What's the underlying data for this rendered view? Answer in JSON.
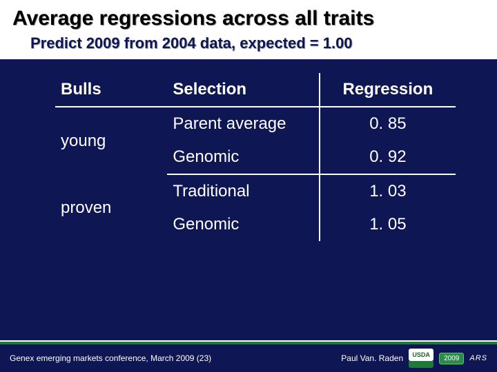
{
  "title": "Average regressions across all traits",
  "subtitle": "Predict 2009 from 2004 data, expected = 1.00",
  "table": {
    "headers": {
      "bulls": "Bulls",
      "selection": "Selection",
      "regression": "Regression"
    },
    "groups": [
      {
        "label": "young",
        "rows": [
          {
            "selection": "Parent average",
            "regression": "0. 85"
          },
          {
            "selection": "Genomic",
            "regression": "0. 92"
          }
        ]
      },
      {
        "label": "proven",
        "rows": [
          {
            "selection": "Traditional",
            "regression": "1. 03"
          },
          {
            "selection": "Genomic",
            "regression": "1. 05"
          }
        ]
      }
    ]
  },
  "footer": {
    "left": "Genex emerging markets conference, March 2009 (23)",
    "author": "Paul Van. Raden",
    "logo_top": "USDA",
    "logo_bot": "",
    "chip": "2009",
    "ars": "ARS"
  },
  "colors": {
    "background": "#0e1754",
    "accent_green": "#1f7a3a",
    "text": "#ffffff"
  }
}
